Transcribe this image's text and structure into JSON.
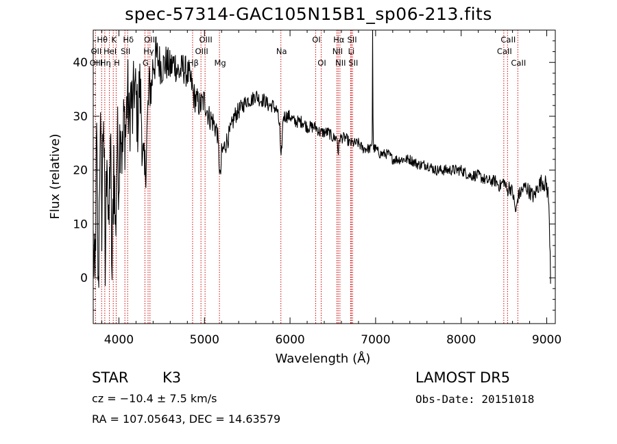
{
  "header": {
    "title": "spec-57314-GAC105N15B1_sp06-213.fits"
  },
  "info": {
    "object_class": "STAR",
    "subclass": "K3",
    "survey": "LAMOST DR5",
    "redshift_text": "cz = −10.4 ± 7.5 km/s",
    "obs_date": "Obs-Date: 20151018",
    "coords": "RA = 107.05643, DEC =  14.63579"
  },
  "chart_data": {
    "type": "line",
    "title": "spec-57314-GAC105N15B1_sp06-213.fits",
    "xlabel": "Wavelength (Å)",
    "ylabel": "Flux (relative)",
    "xlim": [
      3700,
      9100
    ],
    "ylim": [
      -8.5,
      46
    ],
    "xticks": [
      4000,
      5000,
      6000,
      7000,
      8000,
      9000
    ],
    "yticks": [
      0,
      10,
      20,
      30,
      40
    ],
    "grid": false,
    "line_color": "#000000",
    "marker_color": "#cc0000",
    "spectrum_anchors": [
      [
        3700,
        6
      ],
      [
        3720,
        -3
      ],
      [
        3740,
        25
      ],
      [
        3760,
        -5
      ],
      [
        3780,
        30
      ],
      [
        3800,
        12
      ],
      [
        3820,
        33
      ],
      [
        3840,
        0
      ],
      [
        3860,
        28
      ],
      [
        3880,
        5
      ],
      [
        3900,
        27
      ],
      [
        3920,
        -1
      ],
      [
        3940,
        23
      ],
      [
        3960,
        8
      ],
      [
        3980,
        25
      ],
      [
        4000,
        20
      ],
      [
        4020,
        31
      ],
      [
        4040,
        22
      ],
      [
        4060,
        29
      ],
      [
        4080,
        27
      ],
      [
        4100,
        35
      ],
      [
        4120,
        28
      ],
      [
        4140,
        34
      ],
      [
        4160,
        30
      ],
      [
        4180,
        36
      ],
      [
        4200,
        33
      ],
      [
        4220,
        29
      ],
      [
        4240,
        36
      ],
      [
        4260,
        32
      ],
      [
        4280,
        22
      ],
      [
        4300,
        18
      ],
      [
        4320,
        24
      ],
      [
        4340,
        31
      ],
      [
        4360,
        36
      ],
      [
        4380,
        35
      ],
      [
        4400,
        40
      ],
      [
        4450,
        41
      ],
      [
        4500,
        39
      ],
      [
        4550,
        40
      ],
      [
        4600,
        39
      ],
      [
        4650,
        40
      ],
      [
        4700,
        38
      ],
      [
        4750,
        39
      ],
      [
        4800,
        38
      ],
      [
        4850,
        36
      ],
      [
        4870,
        34
      ],
      [
        4900,
        33
      ],
      [
        4950,
        32
      ],
      [
        5000,
        33
      ],
      [
        5050,
        30
      ],
      [
        5100,
        29
      ],
      [
        5150,
        27
      ],
      [
        5170,
        22
      ],
      [
        5185,
        18
      ],
      [
        5200,
        23
      ],
      [
        5250,
        25
      ],
      [
        5300,
        27
      ],
      [
        5350,
        30
      ],
      [
        5400,
        31
      ],
      [
        5450,
        32
      ],
      [
        5500,
        33
      ],
      [
        5550,
        33
      ],
      [
        5600,
        34
      ],
      [
        5650,
        33
      ],
      [
        5700,
        33
      ],
      [
        5750,
        32
      ],
      [
        5800,
        32
      ],
      [
        5850,
        31
      ],
      [
        5880,
        28
      ],
      [
        5893,
        21
      ],
      [
        5905,
        25
      ],
      [
        5920,
        30
      ],
      [
        5950,
        30
      ],
      [
        6000,
        30
      ],
      [
        6050,
        29
      ],
      [
        6100,
        29
      ],
      [
        6150,
        29
      ],
      [
        6200,
        28
      ],
      [
        6250,
        28
      ],
      [
        6300,
        28
      ],
      [
        6350,
        27
      ],
      [
        6400,
        27
      ],
      [
        6450,
        27
      ],
      [
        6500,
        26
      ],
      [
        6550,
        26
      ],
      [
        6563,
        23
      ],
      [
        6580,
        26
      ],
      [
        6600,
        26
      ],
      [
        6650,
        26
      ],
      [
        6700,
        25
      ],
      [
        6750,
        25
      ],
      [
        6800,
        25
      ],
      [
        6850,
        24
      ],
      [
        6900,
        24
      ],
      [
        6950,
        24
      ],
      [
        6960,
        26
      ],
      [
        6965,
        55
      ],
      [
        6970,
        30
      ],
      [
        6975,
        24
      ],
      [
        7000,
        24
      ],
      [
        7050,
        23
      ],
      [
        7100,
        23
      ],
      [
        7150,
        23
      ],
      [
        7200,
        22
      ],
      [
        7300,
        22
      ],
      [
        7400,
        22
      ],
      [
        7500,
        21
      ],
      [
        7600,
        21
      ],
      [
        7700,
        20
      ],
      [
        7800,
        20
      ],
      [
        7900,
        20
      ],
      [
        8000,
        20
      ],
      [
        8100,
        19
      ],
      [
        8200,
        19
      ],
      [
        8300,
        18
      ],
      [
        8400,
        18
      ],
      [
        8450,
        17
      ],
      [
        8500,
        18
      ],
      [
        8540,
        16
      ],
      [
        8560,
        17
      ],
      [
        8600,
        16
      ],
      [
        8640,
        12
      ],
      [
        8662,
        15
      ],
      [
        8700,
        16
      ],
      [
        8750,
        17
      ],
      [
        8800,
        16
      ],
      [
        8850,
        15
      ],
      [
        8900,
        17
      ],
      [
        8950,
        18
      ],
      [
        9000,
        17
      ],
      [
        9020,
        15
      ],
      [
        9040,
        5
      ],
      [
        9045,
        0
      ]
    ],
    "spectrum_noise": [
      [
        3700,
        9
      ],
      [
        4000,
        9
      ],
      [
        4300,
        6
      ],
      [
        4500,
        3.5
      ],
      [
        5000,
        2.5
      ],
      [
        5500,
        1.4
      ],
      [
        6000,
        1.2
      ],
      [
        7000,
        0.9
      ],
      [
        8400,
        1.1
      ],
      [
        8900,
        1.5
      ],
      [
        9050,
        2
      ]
    ],
    "lines_set_top": [
      {
        "label": "Hθ",
        "wl": 3798
      },
      {
        "label": "K",
        "wl": 3934
      },
      {
        "label": "Hδ",
        "wl": 4102
      },
      {
        "label": "OIII",
        "wl": 4363
      },
      {
        "label": "OIII",
        "wl": 5007
      },
      {
        "label": "OI",
        "wl": 6300
      },
      {
        "label": "Hα",
        "wl": 6563
      },
      {
        "label": "SII",
        "wl": 6717
      },
      {
        "label": "CaII",
        "wl": 8542
      }
    ],
    "lines_set_mid": [
      {
        "label": "OII",
        "wl": 3727
      },
      {
        "label": "HeI",
        "wl": 3889
      },
      {
        "label": "SII",
        "wl": 4070
      },
      {
        "label": "Hγ",
        "wl": 4341
      },
      {
        "label": "OIII",
        "wl": 4959
      },
      {
        "label": "Na",
        "wl": 5893
      },
      {
        "label": "NII",
        "wl": 6548
      },
      {
        "label": "Li",
        "wl": 6708
      },
      {
        "label": "CaII",
        "wl": 8498
      }
    ],
    "lines_set_low": [
      {
        "label": "OIII",
        "wl": 3727
      },
      {
        "label": "Hη",
        "wl": 3835
      },
      {
        "label": "H",
        "wl": 3968
      },
      {
        "label": "G",
        "wl": 4304
      },
      {
        "label": "Hβ",
        "wl": 4861
      },
      {
        "label": "Mg",
        "wl": 5175
      },
      {
        "label": "OI",
        "wl": 6364
      },
      {
        "label": "NII",
        "wl": 6583
      },
      {
        "label": "SII",
        "wl": 6731
      },
      {
        "label": "CaII",
        "wl": 8662
      }
    ]
  }
}
